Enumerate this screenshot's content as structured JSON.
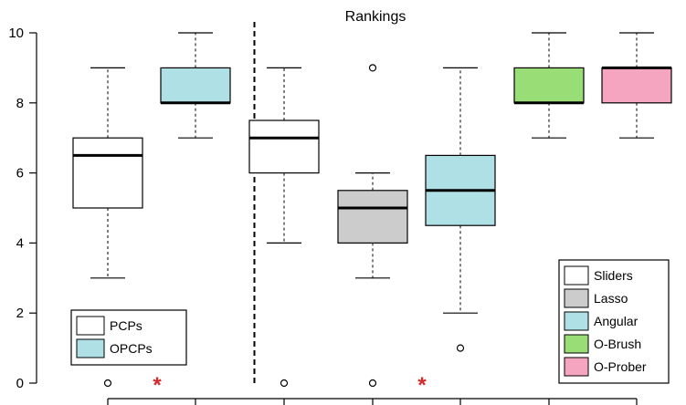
{
  "chart_data": {
    "type": "boxplot",
    "title": "Rankings",
    "xlabel": "",
    "ylabel": "",
    "ylim": [
      0,
      10
    ],
    "yticks": [
      0,
      2,
      4,
      6,
      8,
      10
    ],
    "grid": false,
    "boxes": [
      {
        "group": "PCPs",
        "min": 3,
        "q1": 5,
        "median": 6.5,
        "q3": 7,
        "max": 9,
        "outliers": [
          0
        ],
        "color": "#ffffff",
        "significance_marker": ""
      },
      {
        "group": "OPCPs",
        "min": 7,
        "q1": 8,
        "median": 8,
        "q3": 9,
        "max": 10,
        "outliers": [],
        "color": "#aee0e6",
        "significance_marker": "*"
      },
      {
        "group": "Sliders",
        "min": 4,
        "q1": 6,
        "median": 7,
        "q3": 7.5,
        "max": 9,
        "outliers": [
          0
        ],
        "color": "#ffffff",
        "significance_marker": ""
      },
      {
        "group": "Lasso",
        "min": 3,
        "q1": 4,
        "median": 5,
        "q3": 5.5,
        "max": 6,
        "outliers": [
          9,
          0
        ],
        "color": "#cccccc",
        "significance_marker": ""
      },
      {
        "group": "Angular",
        "min": 2,
        "q1": 4.5,
        "median": 5.5,
        "q3": 6.5,
        "max": 9,
        "outliers": [
          1
        ],
        "color": "#aee0e6",
        "significance_marker": "*"
      },
      {
        "group": "O-Brush",
        "min": 7,
        "q1": 8,
        "median": 8,
        "q3": 9,
        "max": 10,
        "outliers": [],
        "color": "#99dd77",
        "significance_marker": ""
      },
      {
        "group": "O-Prober",
        "min": 7,
        "q1": 8,
        "median": 9,
        "q3": 9,
        "max": 10,
        "outliers": [],
        "color": "#f6a5c0",
        "significance_marker": ""
      }
    ],
    "divider_after_index": 1,
    "legends": [
      {
        "placement": "bottom-left",
        "entries": [
          {
            "label": "PCPs",
            "color": "#ffffff"
          },
          {
            "label": "OPCPs",
            "color": "#aee0e6"
          }
        ]
      },
      {
        "placement": "bottom-right",
        "entries": [
          {
            "label": "Sliders",
            "color": "#ffffff"
          },
          {
            "label": "Lasso",
            "color": "#cccccc"
          },
          {
            "label": "Angular",
            "color": "#aee0e6"
          },
          {
            "label": "O-Brush",
            "color": "#99dd77"
          },
          {
            "label": "O-Prober",
            "color": "#f6a5c0"
          }
        ]
      }
    ]
  }
}
